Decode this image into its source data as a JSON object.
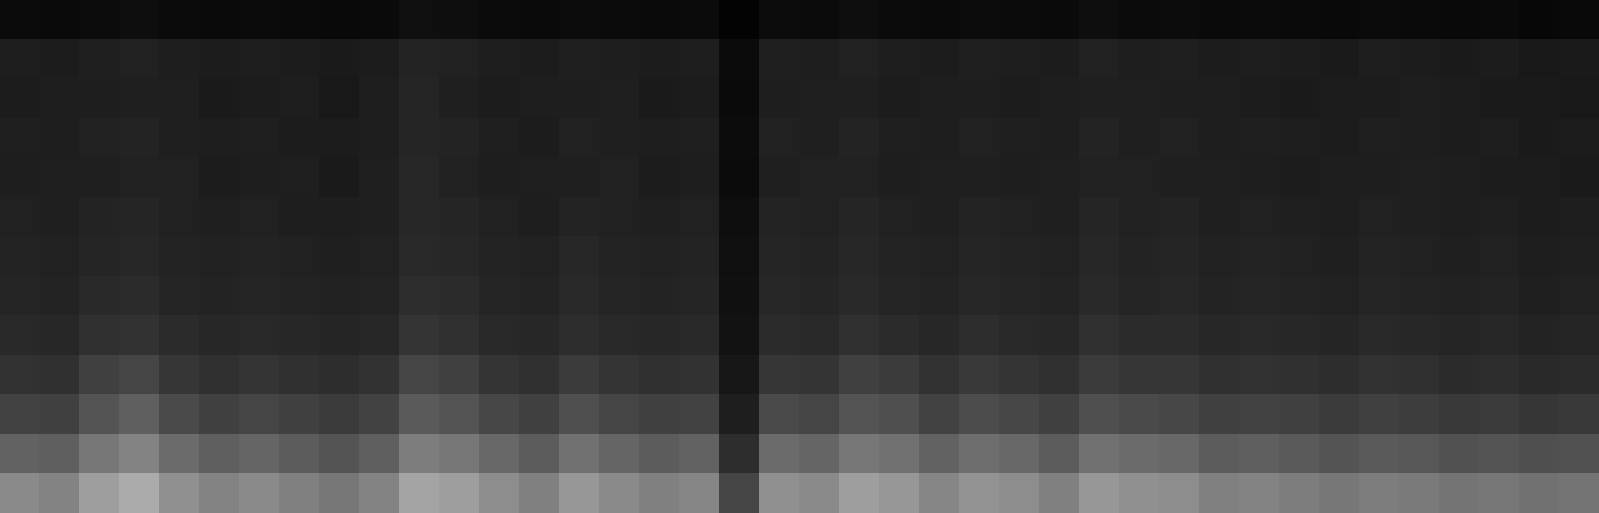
{
  "chart_data": {
    "type": "heatmap",
    "tick_labels": false,
    "zlim": [
      0,
      100
    ],
    "cells": [
      [
        14,
        13,
        15,
        16,
        14,
        13,
        14,
        13,
        12,
        13,
        17,
        16,
        14,
        13,
        15,
        14,
        13,
        14,
        6,
        15,
        14,
        16,
        14,
        13,
        15,
        14,
        13,
        16,
        14,
        15,
        13,
        14,
        13,
        12,
        14,
        13,
        12,
        13,
        11,
        12
      ],
      [
        26,
        25,
        27,
        28,
        26,
        25,
        26,
        25,
        24,
        25,
        29,
        28,
        26,
        25,
        27,
        26,
        25,
        26,
        14,
        27,
        26,
        28,
        26,
        25,
        27,
        26,
        25,
        28,
        26,
        27,
        25,
        26,
        25,
        24,
        26,
        25,
        24,
        25,
        23,
        24
      ],
      [
        25,
        26,
        26,
        27,
        27,
        24,
        25,
        26,
        23,
        26,
        30,
        27,
        25,
        26,
        26,
        27,
        24,
        25,
        13,
        26,
        27,
        27,
        25,
        26,
        26,
        25,
        26,
        27,
        27,
        26,
        26,
        25,
        24,
        25,
        25,
        26,
        25,
        24,
        24,
        23
      ],
      [
        27,
        26,
        28,
        29,
        27,
        26,
        27,
        25,
        25,
        26,
        30,
        29,
        27,
        25,
        28,
        27,
        26,
        27,
        15,
        28,
        27,
        29,
        27,
        26,
        28,
        27,
        26,
        29,
        27,
        28,
        26,
        27,
        26,
        25,
        27,
        26,
        25,
        26,
        24,
        25
      ],
      [
        26,
        27,
        27,
        28,
        28,
        25,
        26,
        27,
        24,
        27,
        31,
        28,
        26,
        27,
        27,
        28,
        25,
        26,
        14,
        27,
        28,
        28,
        26,
        27,
        27,
        26,
        27,
        28,
        28,
        27,
        27,
        26,
        25,
        26,
        26,
        27,
        26,
        25,
        25,
        24
      ],
      [
        28,
        27,
        29,
        30,
        28,
        27,
        28,
        26,
        26,
        27,
        31,
        30,
        28,
        26,
        29,
        28,
        27,
        28,
        16,
        29,
        28,
        30,
        28,
        27,
        29,
        28,
        27,
        30,
        28,
        29,
        27,
        28,
        27,
        26,
        28,
        27,
        26,
        27,
        25,
        26
      ],
      [
        29,
        28,
        30,
        31,
        29,
        28,
        29,
        28,
        27,
        28,
        32,
        31,
        29,
        28,
        31,
        29,
        28,
        29,
        17,
        30,
        29,
        31,
        29,
        28,
        30,
        29,
        28,
        31,
        29,
        30,
        28,
        29,
        28,
        27,
        29,
        28,
        27,
        28,
        26,
        27
      ],
      [
        30,
        29,
        32,
        33,
        30,
        29,
        30,
        29,
        28,
        29,
        34,
        33,
        30,
        29,
        32,
        30,
        29,
        30,
        18,
        31,
        30,
        32,
        30,
        29,
        31,
        30,
        29,
        32,
        30,
        31,
        29,
        30,
        29,
        28,
        30,
        29,
        28,
        29,
        27,
        28
      ],
      [
        32,
        31,
        35,
        36,
        33,
        31,
        32,
        31,
        30,
        31,
        37,
        35,
        32,
        31,
        34,
        32,
        31,
        32,
        19,
        33,
        32,
        35,
        33,
        31,
        34,
        32,
        31,
        35,
        33,
        33,
        31,
        32,
        31,
        30,
        32,
        31,
        30,
        31,
        29,
        30
      ],
      [
        36,
        35,
        42,
        44,
        38,
        35,
        37,
        35,
        34,
        36,
        44,
        42,
        37,
        35,
        40,
        37,
        35,
        36,
        22,
        38,
        37,
        42,
        40,
        36,
        39,
        37,
        35,
        40,
        38,
        38,
        35,
        36,
        35,
        34,
        36,
        35,
        33,
        34,
        32,
        33
      ],
      [
        43,
        42,
        50,
        54,
        46,
        42,
        44,
        42,
        40,
        43,
        52,
        50,
        45,
        42,
        48,
        44,
        42,
        43,
        26,
        46,
        44,
        50,
        48,
        43,
        47,
        45,
        42,
        48,
        46,
        45,
        42,
        43,
        42,
        40,
        42,
        41,
        39,
        40,
        38,
        39
      ],
      [
        55,
        54,
        62,
        66,
        58,
        54,
        56,
        53,
        50,
        54,
        64,
        62,
        57,
        53,
        60,
        56,
        53,
        55,
        34,
        58,
        56,
        62,
        60,
        55,
        59,
        57,
        53,
        60,
        58,
        57,
        53,
        54,
        52,
        50,
        52,
        51,
        49,
        50,
        48,
        49
      ],
      [
        68,
        66,
        74,
        78,
        70,
        66,
        68,
        65,
        62,
        66,
        76,
        74,
        69,
        65,
        72,
        68,
        65,
        67,
        44,
        70,
        68,
        74,
        72,
        67,
        71,
        69,
        65,
        72,
        70,
        69,
        65,
        66,
        64,
        62,
        64,
        63,
        61,
        62,
        60,
        61
      ]
    ]
  }
}
